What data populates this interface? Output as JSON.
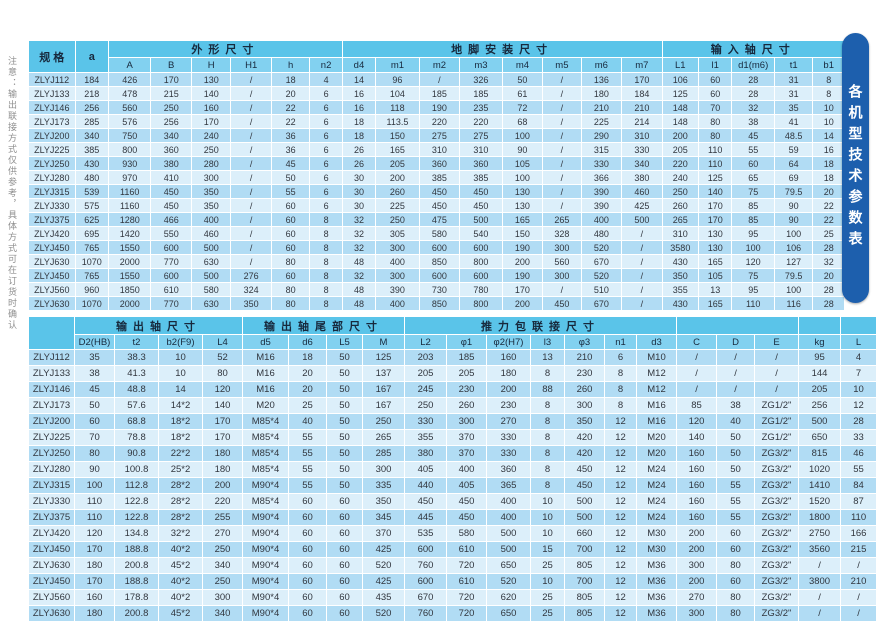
{
  "side_note": "注意：输出联接方式仅供参考，具体方式可在订货时确认",
  "side_tab": {
    "label": "各机型技术参数表",
    "bg": "#1d5fad",
    "text_color": "#ffffff"
  },
  "colors": {
    "group_header_bg": "#5ac4e9",
    "column_header_bg": "#82d1f0",
    "row_dark": "#b1dcf4",
    "row_light": "#dceffa",
    "grid": "#ffffff",
    "text": "#31363e",
    "note_text": "#8f8f8f"
  },
  "table_top": {
    "header_groups": [
      {
        "label": "规 格",
        "rowspan": 2
      },
      {
        "label": "a",
        "rowspan": 2
      },
      {
        "label": "外形尺寸",
        "colspan": 6,
        "cn": true
      },
      {
        "label": "地脚安装尺寸",
        "colspan": 8,
        "cn": true
      },
      {
        "label": "输入轴尺寸",
        "colspan": 5,
        "cn": true
      }
    ],
    "columns": [
      "A",
      "B",
      "H",
      "H1",
      "h",
      "n2",
      "d4",
      "m1",
      "m2",
      "m3",
      "m4",
      "m5",
      "m6",
      "m7",
      "L1",
      "l1",
      "d1(m6)",
      "t1",
      "b1"
    ],
    "rows": [
      [
        "ZLYJ112",
        "184",
        "426",
        "170",
        "130",
        "/",
        "18",
        "4",
        "14",
        "96",
        "/",
        "326",
        "50",
        "/",
        "136",
        "170",
        "106",
        "60",
        "28",
        "31",
        "8"
      ],
      [
        "ZLYJ133",
        "218",
        "478",
        "215",
        "140",
        "/",
        "20",
        "6",
        "16",
        "104",
        "185",
        "185",
        "61",
        "/",
        "180",
        "184",
        "125",
        "60",
        "28",
        "31",
        "8"
      ],
      [
        "ZLYJ146",
        "256",
        "560",
        "250",
        "160",
        "/",
        "22",
        "6",
        "16",
        "118",
        "190",
        "235",
        "72",
        "/",
        "210",
        "210",
        "148",
        "70",
        "32",
        "35",
        "10"
      ],
      [
        "ZLYJ173",
        "285",
        "576",
        "256",
        "170",
        "/",
        "22",
        "6",
        "18",
        "113.5",
        "220",
        "220",
        "68",
        "/",
        "225",
        "214",
        "148",
        "80",
        "38",
        "41",
        "10"
      ],
      [
        "ZLYJ200",
        "340",
        "750",
        "340",
        "240",
        "/",
        "36",
        "6",
        "18",
        "150",
        "275",
        "275",
        "100",
        "/",
        "290",
        "310",
        "200",
        "80",
        "45",
        "48.5",
        "14"
      ],
      [
        "ZLYJ225",
        "385",
        "800",
        "360",
        "250",
        "/",
        "36",
        "6",
        "26",
        "165",
        "310",
        "310",
        "90",
        "/",
        "315",
        "330",
        "205",
        "110",
        "55",
        "59",
        "16"
      ],
      [
        "ZLYJ250",
        "430",
        "930",
        "380",
        "280",
        "/",
        "45",
        "6",
        "26",
        "205",
        "360",
        "360",
        "105",
        "/",
        "330",
        "340",
        "220",
        "110",
        "60",
        "64",
        "18"
      ],
      [
        "ZLYJ280",
        "480",
        "970",
        "410",
        "300",
        "/",
        "50",
        "6",
        "30",
        "200",
        "385",
        "385",
        "100",
        "/",
        "366",
        "380",
        "240",
        "125",
        "65",
        "69",
        "18"
      ],
      [
        "ZLYJ315",
        "539",
        "1160",
        "450",
        "350",
        "/",
        "55",
        "6",
        "30",
        "260",
        "450",
        "450",
        "130",
        "/",
        "390",
        "460",
        "250",
        "140",
        "75",
        "79.5",
        "20"
      ],
      [
        "ZLYJ330",
        "575",
        "1160",
        "450",
        "350",
        "/",
        "60",
        "6",
        "30",
        "225",
        "450",
        "450",
        "130",
        "/",
        "390",
        "425",
        "260",
        "170",
        "85",
        "90",
        "22"
      ],
      [
        "ZLYJ375",
        "625",
        "1280",
        "466",
        "400",
        "/",
        "60",
        "8",
        "32",
        "250",
        "475",
        "500",
        "165",
        "265",
        "400",
        "500",
        "265",
        "170",
        "85",
        "90",
        "22"
      ],
      [
        "ZLYJ420",
        "695",
        "1420",
        "550",
        "460",
        "/",
        "60",
        "8",
        "32",
        "305",
        "580",
        "540",
        "150",
        "328",
        "480",
        "/",
        "310",
        "130",
        "95",
        "100",
        "25"
      ],
      [
        "ZLYJ450",
        "765",
        "1550",
        "600",
        "500",
        "/",
        "60",
        "8",
        "32",
        "300",
        "600",
        "600",
        "190",
        "300",
        "520",
        "/",
        "3580",
        "130",
        "100",
        "106",
        "28"
      ],
      [
        "ZLYJ630",
        "1070",
        "2000",
        "770",
        "630",
        "/",
        "80",
        "8",
        "48",
        "400",
        "850",
        "800",
        "200",
        "560",
        "670",
        "/",
        "430",
        "165",
        "120",
        "127",
        "32"
      ],
      [
        "ZLYJ450",
        "765",
        "1550",
        "600",
        "500",
        "276",
        "60",
        "8",
        "32",
        "300",
        "600",
        "600",
        "190",
        "300",
        "520",
        "/",
        "350",
        "105",
        "75",
        "79.5",
        "20"
      ],
      [
        "ZLYJ560",
        "960",
        "1850",
        "610",
        "580",
        "324",
        "80",
        "8",
        "48",
        "390",
        "730",
        "780",
        "170",
        "/",
        "510",
        "/",
        "355",
        "13",
        "95",
        "100",
        "28"
      ],
      [
        "ZLYJ630",
        "1070",
        "2000",
        "770",
        "630",
        "350",
        "80",
        "8",
        "48",
        "400",
        "850",
        "800",
        "200",
        "450",
        "670",
        "/",
        "430",
        "165",
        "110",
        "116",
        "28"
      ]
    ]
  },
  "table_bottom": {
    "header_groups": [
      {
        "label": "",
        "rowspan": 2
      },
      {
        "label": "输出轴尺寸",
        "colspan": 4,
        "cn": true
      },
      {
        "label": "输出轴尾部尺寸",
        "colspan": 4,
        "cn": true
      },
      {
        "label": "推力包联接尺寸",
        "colspan": 7,
        "cn": true
      },
      {
        "label": "",
        "colspan": 3
      },
      {
        "label": "",
        "colspan": 1
      },
      {
        "label": "",
        "colspan": 1
      }
    ],
    "columns": [
      "D2(HB)",
      "t2",
      "b2(F9)",
      "L4",
      "d5",
      "d6",
      "L5",
      "M",
      "L2",
      "φ1",
      "φ2(H7)",
      "l3",
      "φ3",
      "n1",
      "d3",
      "C",
      "D",
      "E",
      "kg",
      "L"
    ],
    "rows": [
      [
        "ZLYJ112",
        "35",
        "38.3",
        "10",
        "52",
        "M16",
        "18",
        "50",
        "125",
        "203",
        "185",
        "160",
        "13",
        "210",
        "6",
        "M10",
        "/",
        "/",
        "/",
        "95",
        "4"
      ],
      [
        "ZLYJ133",
        "38",
        "41.3",
        "10",
        "80",
        "M16",
        "20",
        "50",
        "137",
        "205",
        "205",
        "180",
        "8",
        "230",
        "8",
        "M12",
        "/",
        "/",
        "/",
        "144",
        "7"
      ],
      [
        "ZLYJ146",
        "45",
        "48.8",
        "14",
        "120",
        "M16",
        "20",
        "50",
        "167",
        "245",
        "230",
        "200",
        "88",
        "260",
        "8",
        "M12",
        "/",
        "/",
        "/",
        "205",
        "10"
      ],
      [
        "ZLYJ173",
        "50",
        "57.6",
        "14*2",
        "140",
        "M20",
        "25",
        "50",
        "167",
        "250",
        "260",
        "230",
        "8",
        "300",
        "8",
        "M16",
        "85",
        "38",
        "ZG1/2\"",
        "256",
        "12"
      ],
      [
        "ZLYJ200",
        "60",
        "68.8",
        "18*2",
        "170",
        "M85*4",
        "40",
        "50",
        "250",
        "330",
        "300",
        "270",
        "8",
        "350",
        "12",
        "M16",
        "120",
        "40",
        "ZG1/2\"",
        "500",
        "28"
      ],
      [
        "ZLYJ225",
        "70",
        "78.8",
        "18*2",
        "170",
        "M85*4",
        "55",
        "50",
        "265",
        "355",
        "370",
        "330",
        "8",
        "420",
        "12",
        "M20",
        "140",
        "50",
        "ZG1/2\"",
        "650",
        "33"
      ],
      [
        "ZLYJ250",
        "80",
        "90.8",
        "22*2",
        "180",
        "M85*4",
        "55",
        "50",
        "285",
        "380",
        "370",
        "330",
        "8",
        "420",
        "12",
        "M20",
        "160",
        "50",
        "ZG3/2\"",
        "815",
        "46"
      ],
      [
        "ZLYJ280",
        "90",
        "100.8",
        "25*2",
        "180",
        "M85*4",
        "55",
        "50",
        "300",
        "405",
        "400",
        "360",
        "8",
        "450",
        "12",
        "M24",
        "160",
        "50",
        "ZG3/2\"",
        "1020",
        "55"
      ],
      [
        "ZLYJ315",
        "100",
        "112.8",
        "28*2",
        "200",
        "M90*4",
        "55",
        "50",
        "335",
        "440",
        "405",
        "365",
        "8",
        "450",
        "12",
        "M24",
        "160",
        "55",
        "ZG3/2\"",
        "1410",
        "84"
      ],
      [
        "ZLYJ330",
        "110",
        "122.8",
        "28*2",
        "220",
        "M85*4",
        "60",
        "60",
        "350",
        "450",
        "450",
        "400",
        "10",
        "500",
        "12",
        "M24",
        "160",
        "55",
        "ZG3/2\"",
        "1520",
        "87"
      ],
      [
        "ZLYJ375",
        "110",
        "122.8",
        "28*2",
        "255",
        "M90*4",
        "60",
        "60",
        "345",
        "445",
        "450",
        "400",
        "10",
        "500",
        "12",
        "M24",
        "160",
        "55",
        "ZG3/2\"",
        "1800",
        "110"
      ],
      [
        "ZLYJ420",
        "120",
        "134.8",
        "32*2",
        "270",
        "M90*4",
        "60",
        "60",
        "370",
        "535",
        "580",
        "500",
        "10",
        "660",
        "12",
        "M30",
        "200",
        "60",
        "ZG3/2\"",
        "2750",
        "166"
      ],
      [
        "ZLYJ450",
        "170",
        "188.8",
        "40*2",
        "250",
        "M90*4",
        "60",
        "60",
        "425",
        "600",
        "610",
        "500",
        "15",
        "700",
        "12",
        "M30",
        "200",
        "60",
        "ZG3/2\"",
        "3560",
        "215"
      ],
      [
        "ZLYJ630",
        "180",
        "200.8",
        "45*2",
        "340",
        "M90*4",
        "60",
        "60",
        "520",
        "760",
        "720",
        "650",
        "25",
        "805",
        "12",
        "M36",
        "300",
        "80",
        "ZG3/2\"",
        "/",
        "/"
      ],
      [
        "ZLYJ450",
        "170",
        "188.8",
        "40*2",
        "250",
        "M90*4",
        "60",
        "60",
        "425",
        "600",
        "610",
        "520",
        "10",
        "700",
        "12",
        "M36",
        "200",
        "60",
        "ZG3/2\"",
        "3800",
        "210"
      ],
      [
        "ZLYJ560",
        "160",
        "178.8",
        "40*2",
        "300",
        "M90*4",
        "60",
        "60",
        "435",
        "670",
        "720",
        "620",
        "25",
        "805",
        "12",
        "M36",
        "270",
        "80",
        "ZG3/2\"",
        "/",
        "/"
      ],
      [
        "ZLYJ630",
        "180",
        "200.8",
        "45*2",
        "340",
        "M90*4",
        "60",
        "60",
        "520",
        "760",
        "720",
        "650",
        "25",
        "805",
        "12",
        "M36",
        "300",
        "80",
        "ZG3/2\"",
        "/",
        "/"
      ]
    ]
  }
}
